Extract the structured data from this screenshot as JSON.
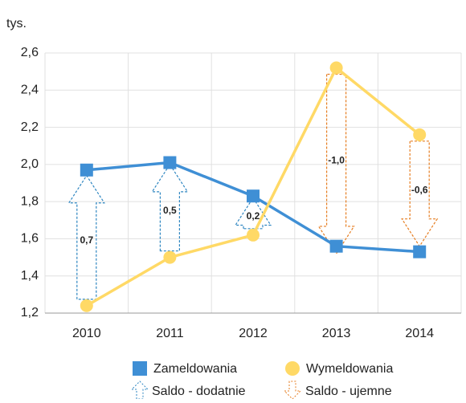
{
  "chart_data": {
    "type": "line",
    "unit_label": "tys.",
    "categories": [
      "2010",
      "2011",
      "2012",
      "2013",
      "2014"
    ],
    "series": [
      {
        "name": "Zameldowania",
        "color": "#3f8fd5",
        "marker": "square",
        "values": [
          1.97,
          2.01,
          1.83,
          1.56,
          1.53
        ]
      },
      {
        "name": "Wymeldowania",
        "color": "#ffd966",
        "marker": "circle",
        "values": [
          1.24,
          1.5,
          1.62,
          2.52,
          2.16
        ]
      }
    ],
    "saldo": {
      "values": [
        0.7,
        0.5,
        0.2,
        -1.0,
        -0.6
      ],
      "value_labels": [
        "0,7",
        "0,5",
        "0,2",
        "-1,0",
        "-0,6"
      ],
      "positive_name": "Saldo - dodatnie",
      "negative_name": "Saldo - ujemne",
      "positive_color": "#2e86c1",
      "negative_color": "#e67e22"
    },
    "ylim": [
      1.2,
      2.6
    ],
    "yticks": [
      {
        "value": 1.2,
        "label": "1,2"
      },
      {
        "value": 1.4,
        "label": "1,4"
      },
      {
        "value": 1.6,
        "label": "1,6"
      },
      {
        "value": 1.8,
        "label": "1,8"
      },
      {
        "value": 2.0,
        "label": "2,0"
      },
      {
        "value": 2.2,
        "label": "2,2"
      },
      {
        "value": 2.4,
        "label": "2,4"
      },
      {
        "value": 2.6,
        "label": "2,6"
      }
    ],
    "grid": true
  }
}
